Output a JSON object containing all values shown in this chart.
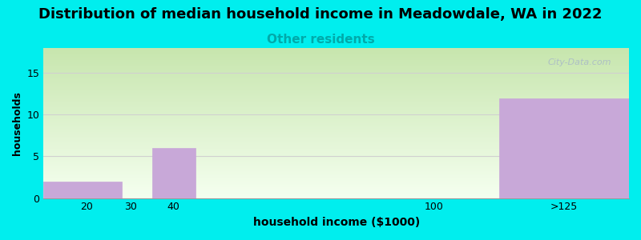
{
  "title": "Distribution of median household income in Meadowdale, WA in 2022",
  "subtitle": "Other residents",
  "xlabel": "household income ($1000)",
  "ylabel": "households",
  "background_color": "#00EEEE",
  "bar_color": "#c8a8d8",
  "bar_edge_color": "#c8a8d8",
  "categories": [
    "20",
    "30",
    "40",
    "100",
    ">125"
  ],
  "bar_lefts": [
    10,
    30,
    35,
    45,
    115
  ],
  "bar_rights": [
    28,
    33,
    45,
    115,
    145
  ],
  "values": [
    2,
    0,
    6,
    0,
    12
  ],
  "xlim": [
    10,
    145
  ],
  "xtick_positions": [
    20,
    30,
    40,
    100
  ],
  "xtick_labels": [
    "20",
    "30",
    "40",
    "100"
  ],
  "xtick_last_pos": 130,
  "xtick_last_label": ">125",
  "ylim": [
    0,
    18
  ],
  "yticks": [
    0,
    5,
    10,
    15
  ],
  "title_fontsize": 13,
  "subtitle_fontsize": 11,
  "subtitle_color": "#00AAAA",
  "axis_label_fontsize": 10,
  "tick_label_fontsize": 9,
  "ylabel_fontsize": 9,
  "watermark_text": "City-Data.com",
  "watermark_color": "#a8b8c8",
  "grid_color": "#d0d0d0",
  "grid_linewidth": 0.8,
  "gradient_top": "#c8ddb0",
  "gradient_bottom": "#f0fbe8"
}
